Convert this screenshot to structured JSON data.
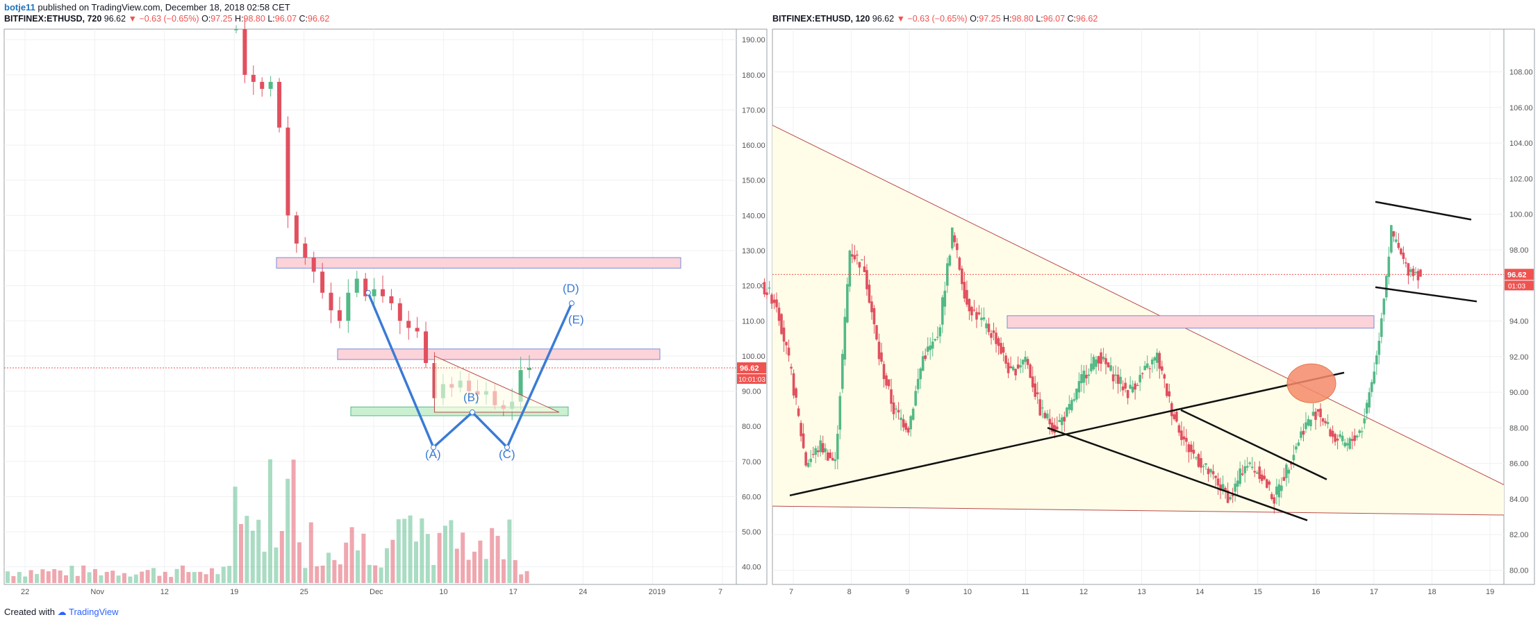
{
  "header": {
    "author": "botje11",
    "text": "published on TradingView.com, December 18, 2018 02:58 CET"
  },
  "colors": {
    "up": "#53b987",
    "down": "#e0505f",
    "pattern": "#3a7bd5",
    "zone_fill": "#fbd3d8",
    "zone_stroke": "#7a8ad8",
    "support_fill": "#c9f0d0",
    "triangle_fill": "#fffde8",
    "triangle_line": "#b84a4a",
    "price_tag": "#ef5350",
    "marker": "#f58a6a"
  },
  "footer": {
    "created": "Created with",
    "brand": "TradingView",
    "logo_icon": "tradingview-logo-icon"
  },
  "chart_data": [
    {
      "type": "candlestick",
      "symbol": "BITFINEX:ETHUSD, 720",
      "last": "96.62",
      "change": "−0.63 (−0.65%)",
      "open": "97.25",
      "high": "98.80",
      "low": "96.07",
      "close": "96.62",
      "ylim": [
        35,
        193
      ],
      "y_ticks": [
        "190.00",
        "180.00",
        "170.00",
        "160.00",
        "150.00",
        "140.00",
        "130.00",
        "120.00",
        "110.00",
        "100.00",
        "90.00",
        "80.00",
        "70.00",
        "60.00",
        "50.00",
        "40.00"
      ],
      "x_ticks": [
        "22",
        "Nov",
        "12",
        "19",
        "25",
        "Dec",
        "10",
        "17",
        "24",
        "2019",
        "7"
      ],
      "price_tag": "96.62",
      "countdown": "10:01:03",
      "pattern_labels": [
        "(A)",
        "(B)",
        "(C)",
        "(D)",
        "(E)"
      ],
      "path": [
        {
          "date": "Nov 14",
          "close": 193
        },
        {
          "date": "Nov 15",
          "close": 180
        },
        {
          "date": "Nov 16",
          "close": 178
        },
        {
          "date": "Nov 17",
          "close": 176
        },
        {
          "date": "Nov 18",
          "close": 178
        },
        {
          "date": "Nov 19",
          "close": 165
        },
        {
          "date": "Nov 20",
          "close": 140
        },
        {
          "date": "Nov 21",
          "close": 132
        },
        {
          "date": "Nov 22",
          "close": 128
        },
        {
          "date": "Nov 23",
          "close": 124
        },
        {
          "date": "Nov 24",
          "close": 118
        },
        {
          "date": "Nov 25",
          "close": 113
        },
        {
          "date": "Nov 26",
          "close": 110
        },
        {
          "date": "Nov 27",
          "close": 118
        },
        {
          "date": "Nov 28",
          "close": 122
        },
        {
          "date": "Nov 29",
          "close": 117
        },
        {
          "date": "Nov 30",
          "close": 119
        },
        {
          "date": "Dec 1",
          "close": 117
        },
        {
          "date": "Dec 2",
          "close": 115
        },
        {
          "date": "Dec 3",
          "close": 110
        },
        {
          "date": "Dec 4",
          "close": 108
        },
        {
          "date": "Dec 5",
          "close": 107
        },
        {
          "date": "Dec 6",
          "close": 98
        },
        {
          "date": "Dec 7",
          "close": 88
        },
        {
          "date": "Dec 8",
          "close": 92
        },
        {
          "date": "Dec 9",
          "close": 91
        },
        {
          "date": "Dec 10",
          "close": 93
        },
        {
          "date": "Dec 11",
          "close": 90
        },
        {
          "date": "Dec 12",
          "close": 89
        },
        {
          "date": "Dec 13",
          "close": 90
        },
        {
          "date": "Dec 14",
          "close": 86
        },
        {
          "date": "Dec 15",
          "close": 85
        },
        {
          "date": "Dec 16",
          "close": 87
        },
        {
          "date": "Dec 17",
          "close": 96
        },
        {
          "date": "Dec 18",
          "close": 96.62
        }
      ],
      "volume_note": "volume histogram shown at bottom"
    },
    {
      "type": "candlestick",
      "symbol": "BITFINEX:ETHUSD, 120",
      "last": "96.62",
      "change": "−0.63 (−0.65%)",
      "open": "97.25",
      "high": "98.80",
      "low": "96.07",
      "close": "96.62",
      "ylim": [
        79.2,
        110.4
      ],
      "y_ticks": [
        "108.00",
        "106.00",
        "104.00",
        "102.00",
        "100.00",
        "98.00",
        "96.00",
        "94.00",
        "92.00",
        "90.00",
        "88.00",
        "86.00",
        "84.00",
        "82.00",
        "80.00"
      ],
      "x_ticks": [
        "7",
        "8",
        "9",
        "10",
        "11",
        "12",
        "13",
        "14",
        "15",
        "16",
        "17",
        "18",
        "19"
      ],
      "price_tag": "96.62",
      "countdown": "01:03",
      "path": [
        {
          "date": "Dec 7",
          "close": 95
        },
        {
          "date": "Dec 7 06:00",
          "close": 91
        },
        {
          "date": "Dec 7 12:00",
          "close": 86
        },
        {
          "date": "Dec 7 18:00",
          "close": 87
        },
        {
          "date": "Dec 8 00:00",
          "close": 86
        },
        {
          "date": "Dec 8 06:00",
          "close": 98
        },
        {
          "date": "Dec 8 12:00",
          "close": 97
        },
        {
          "date": "Dec 8 18:00",
          "close": 92
        },
        {
          "date": "Dec 9 00:00",
          "close": 89
        },
        {
          "date": "Dec 9 06:00",
          "close": 88
        },
        {
          "date": "Dec 9 12:00",
          "close": 92
        },
        {
          "date": "Dec 9 18:00",
          "close": 93
        },
        {
          "date": "Dec 10 00:00",
          "close": 99
        },
        {
          "date": "Dec 10 06:00",
          "close": 95
        },
        {
          "date": "Dec 10 12:00",
          "close": 94
        },
        {
          "date": "Dec 10 18:00",
          "close": 93
        },
        {
          "date": "Dec 11 00:00",
          "close": 91
        },
        {
          "date": "Dec 11 06:00",
          "close": 92
        },
        {
          "date": "Dec 11 12:00",
          "close": 89
        },
        {
          "date": "Dec 11 18:00",
          "close": 88
        },
        {
          "date": "Dec 12 00:00",
          "close": 89
        },
        {
          "date": "Dec 12 06:00",
          "close": 91
        },
        {
          "date": "Dec 12 12:00",
          "close": 92
        },
        {
          "date": "Dec 12 18:00",
          "close": 91
        },
        {
          "date": "Dec 13 00:00",
          "close": 90
        },
        {
          "date": "Dec 13 06:00",
          "close": 91
        },
        {
          "date": "Dec 13 12:00",
          "close": 92
        },
        {
          "date": "Dec 13 18:00",
          "close": 89
        },
        {
          "date": "Dec 14 00:00",
          "close": 87
        },
        {
          "date": "Dec 14 06:00",
          "close": 86
        },
        {
          "date": "Dec 14 12:00",
          "close": 85
        },
        {
          "date": "Dec 14 18:00",
          "close": 84
        },
        {
          "date": "Dec 15 00:00",
          "close": 86
        },
        {
          "date": "Dec 15 06:00",
          "close": 85.5
        },
        {
          "date": "Dec 15 12:00",
          "close": 84
        },
        {
          "date": "Dec 15 18:00",
          "close": 86
        },
        {
          "date": "Dec 16 00:00",
          "close": 88
        },
        {
          "date": "Dec 16 06:00",
          "close": 89
        },
        {
          "date": "Dec 16 12:00",
          "close": 87.5
        },
        {
          "date": "Dec 16 18:00",
          "close": 87
        },
        {
          "date": "Dec 17 00:00",
          "close": 88
        },
        {
          "date": "Dec 17 06:00",
          "close": 92
        },
        {
          "date": "Dec 17 12:00",
          "close": 99
        },
        {
          "date": "Dec 17 18:00",
          "close": 97
        },
        {
          "date": "Dec 18",
          "close": 96.62
        }
      ]
    }
  ]
}
